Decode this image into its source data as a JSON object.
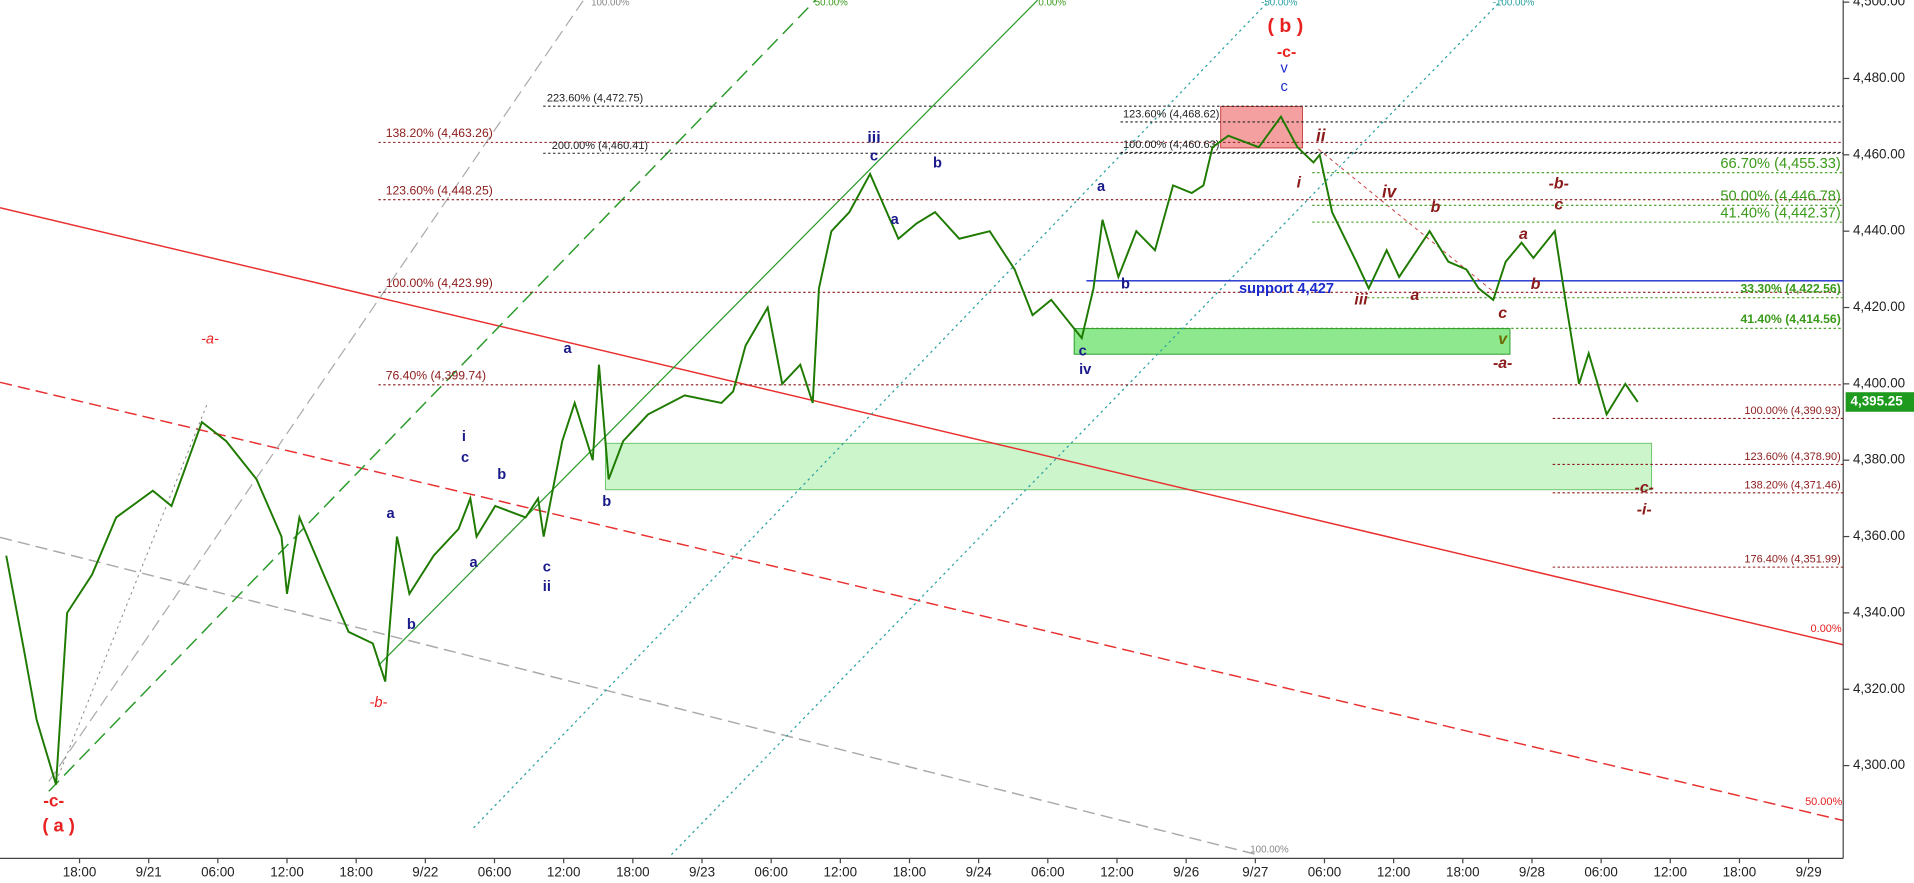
{
  "chart_data": {
    "type": "line",
    "xlim": [
      -1.15,
      25.5
    ],
    "xticks": [
      {
        "value": 0,
        "label": "18:00"
      },
      {
        "value": 1,
        "label": "9/21"
      },
      {
        "value": 2,
        "label": "06:00"
      },
      {
        "value": 3,
        "label": "12:00"
      },
      {
        "value": 4,
        "label": "18:00"
      },
      {
        "value": 5,
        "label": "9/22"
      },
      {
        "value": 6,
        "label": "06:00"
      },
      {
        "value": 7,
        "label": "12:00"
      },
      {
        "value": 8,
        "label": "18:00"
      },
      {
        "value": 9,
        "label": "9/23"
      },
      {
        "value": 10,
        "label": "06:00"
      },
      {
        "value": 11,
        "label": "12:00"
      },
      {
        "value": 12,
        "label": "18:00"
      },
      {
        "value": 13,
        "label": "9/24"
      },
      {
        "value": 14,
        "label": "06:00"
      },
      {
        "value": 15,
        "label": "12:00"
      },
      {
        "value": 16,
        "label": "9/26"
      },
      {
        "value": 17,
        "label": "9/27"
      },
      {
        "value": 18,
        "label": "06:00"
      },
      {
        "value": 19,
        "label": "12:00"
      },
      {
        "value": 20,
        "label": "18:00"
      },
      {
        "value": 21,
        "label": "9/28"
      },
      {
        "value": 22,
        "label": "06:00"
      },
      {
        "value": 23,
        "label": "12:00"
      },
      {
        "value": 24,
        "label": "18:00"
      },
      {
        "value": 25,
        "label": "9/29"
      }
    ],
    "ylim": [
      4269.3,
      4500.5
    ],
    "yticks": [
      {
        "value": 4300,
        "label": "4,300.00"
      },
      {
        "value": 4320,
        "label": "4,320.00"
      },
      {
        "value": 4340,
        "label": "4,340.00"
      },
      {
        "value": 4360,
        "label": "4,360.00"
      },
      {
        "value": 4380,
        "label": "4,380.00"
      },
      {
        "value": 4400,
        "label": "4,400.00"
      },
      {
        "value": 4420,
        "label": "4,420.00"
      },
      {
        "value": 4440,
        "label": "4,440.00"
      },
      {
        "value": 4460,
        "label": "4,460.00"
      },
      {
        "value": 4480,
        "label": "4,480.00"
      },
      {
        "value": 4500,
        "label": "4,500.00"
      }
    ],
    "series": [
      {
        "color": "#1e7a00",
        "x": [
          -1.06,
          -0.8,
          -0.62,
          -0.34,
          -0.18,
          0.18,
          0.53,
          1.06,
          1.33,
          1.77,
          2.12,
          2.56,
          2.92,
          3.0,
          3.18,
          3.53,
          3.89,
          4.24,
          4.42,
          4.59,
          4.77,
          5.12,
          5.48,
          5.65,
          5.74,
          6.01,
          6.45,
          6.63,
          6.71,
          6.98,
          7.16,
          7.42,
          7.51,
          7.65,
          7.86,
          8.22,
          8.75,
          9.28,
          9.45,
          9.63,
          9.95,
          10.16,
          10.42,
          10.6,
          10.69,
          10.87,
          11.13,
          11.43,
          11.84,
          12.1,
          12.37,
          12.72,
          13.16,
          13.52,
          13.78,
          14.05,
          14.49,
          14.66,
          14.79,
          15.02,
          15.28,
          15.55,
          15.81,
          16.08,
          16.25,
          16.38,
          16.61,
          17.05,
          17.37,
          17.61,
          17.84,
          17.93,
          18.11,
          18.46,
          18.64,
          18.9,
          19.08,
          19.52,
          19.79,
          20.05,
          20.23,
          20.44,
          20.62,
          20.85,
          21.02,
          21.33,
          21.5,
          21.68,
          21.82,
          22.08,
          22.35,
          22.53
        ],
        "values": [
          4355,
          4330,
          4312,
          4295,
          4340,
          4350,
          4365,
          4372,
          4368,
          4390,
          4385,
          4375,
          4360,
          4345,
          4365,
          4350,
          4335,
          4332,
          4322,
          4360,
          4345,
          4355,
          4362,
          4370,
          4360,
          4368,
          4365,
          4370,
          4360,
          4385,
          4395,
          4380,
          4405,
          4375,
          4385,
          4392,
          4397,
          4395,
          4398,
          4410,
          4420,
          4400,
          4405,
          4395,
          4425,
          4440,
          4445,
          4455,
          4438,
          4442,
          4445,
          4438,
          4440,
          4430,
          4418,
          4422,
          4412,
          4425,
          4443,
          4428,
          4440,
          4435,
          4452,
          4450,
          4452,
          4462,
          4465,
          4462,
          4470,
          4462,
          4458,
          4460,
          4445,
          4432,
          4425,
          4435,
          4428,
          4440,
          4432,
          4430,
          4425,
          4422,
          4432,
          4437,
          4433,
          4440,
          4420,
          4400,
          4408,
          4392,
          4400,
          4395.25
        ]
      }
    ],
    "last_price": {
      "value": 4395.25,
      "label": "4,395.25"
    },
    "levels": [
      {
        "value": 4472.75,
        "label": "223.60% (4,472.75)"
      },
      {
        "value": 4460.41,
        "label": "200.00% (4,460.41)"
      },
      {
        "value": 4463.26,
        "label": "138.20% (4,463.26)"
      },
      {
        "value": 4448.25,
        "label": "123.60% (4,448.25)"
      },
      {
        "value": 4423.99,
        "label": "100.00% (4,423.99)"
      },
      {
        "value": 4399.74,
        "label": "76.40% (4,399.74)"
      },
      {
        "value": 4468.62,
        "label": "123.60% (4,468.62)"
      },
      {
        "value": 4460.63,
        "label": "100.00% (4,460.63)"
      },
      {
        "value": 4455.33,
        "label": "66.70% (4,455.33)"
      },
      {
        "value": 4446.78,
        "label": "50.00% (4,446.78)"
      },
      {
        "value": 4442.37,
        "label": "41.40% (4,442.37)"
      },
      {
        "value": 4422.56,
        "label": "33.30% (4,422.56)"
      },
      {
        "value": 4414.56,
        "label": "41.40% (4,414.56)"
      },
      {
        "value": 4427,
        "label": "support 4,427"
      },
      {
        "value": 4390.93,
        "label": "100.00% (4,390.93)"
      },
      {
        "value": 4378.9,
        "label": "123.60% (4,378.90)"
      },
      {
        "value": 4371.46,
        "label": "138.20% (4,371.46)"
      },
      {
        "value": 4351.99,
        "label": "176.40% (4,351.99)"
      }
    ],
    "annotations": [
      "( b )",
      "-c-",
      "-a-",
      "-b-",
      "-c-",
      "( a )",
      "-a-",
      "-b-",
      "-c-",
      "-i-",
      "ii",
      "i",
      "iv",
      "iii",
      "a",
      "b",
      "c",
      "v",
      "a",
      "b",
      "c",
      "v",
      "c",
      "iii",
      "c",
      "b",
      "a",
      "a",
      "b",
      "c",
      "iv",
      "a",
      "i",
      "c",
      "b",
      "a",
      "b",
      "a",
      "c",
      "ii",
      "b",
      "100.00%",
      "50.00%",
      "0.00%",
      "-50.00%",
      "-100.00%",
      "0.00%",
      "50.00%",
      "100.00%"
    ]
  }
}
